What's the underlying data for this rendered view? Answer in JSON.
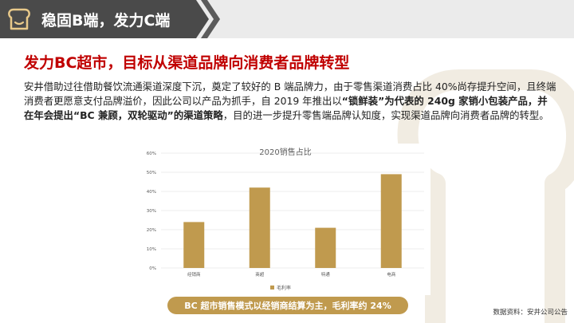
{
  "header": {
    "title": "稳固B端，发力C端"
  },
  "headline": "发力BC超市，目标从渠道品牌向消费者品牌转型",
  "body": {
    "part1": "安井借助过往借助餐饮流通渠道深度下沉，奠定了较好的 B 端品牌力，由于零售渠道消费占比 40%尚存提升空间，且终端消费者更愿意支付品牌溢价，因此公司以产品为抓手，自 2019 年推出以",
    "part2": "“锁鲜装”为代表的 240g 家销小包装产品，并在年会提出“BC 兼顾，双轮驱动”的渠道策略",
    "part3": "，目的进一步提升零售端品牌认知度，实现渠道品牌向消费者品牌的转型。"
  },
  "caption": "BC 超市销售模式以经销商结算为主，毛利率约 24%",
  "source": "数据资料：安井公司公告",
  "colors": {
    "accent": "#c00000",
    "bar": "#c09a4e",
    "header_dark": "#4a4a4a"
  },
  "chart_data": {
    "type": "bar",
    "title": "2020销售占比",
    "categories": [
      "经销商",
      "商超",
      "特通",
      "电商"
    ],
    "series": [
      {
        "name": "毛利率",
        "values": [
          24,
          42,
          21,
          49
        ]
      }
    ],
    "y_ticks": [
      "0%",
      "10%",
      "20%",
      "30%",
      "40%",
      "50%",
      "60%"
    ],
    "ylim": [
      0,
      60
    ],
    "grid": true,
    "legend": "bottom"
  }
}
